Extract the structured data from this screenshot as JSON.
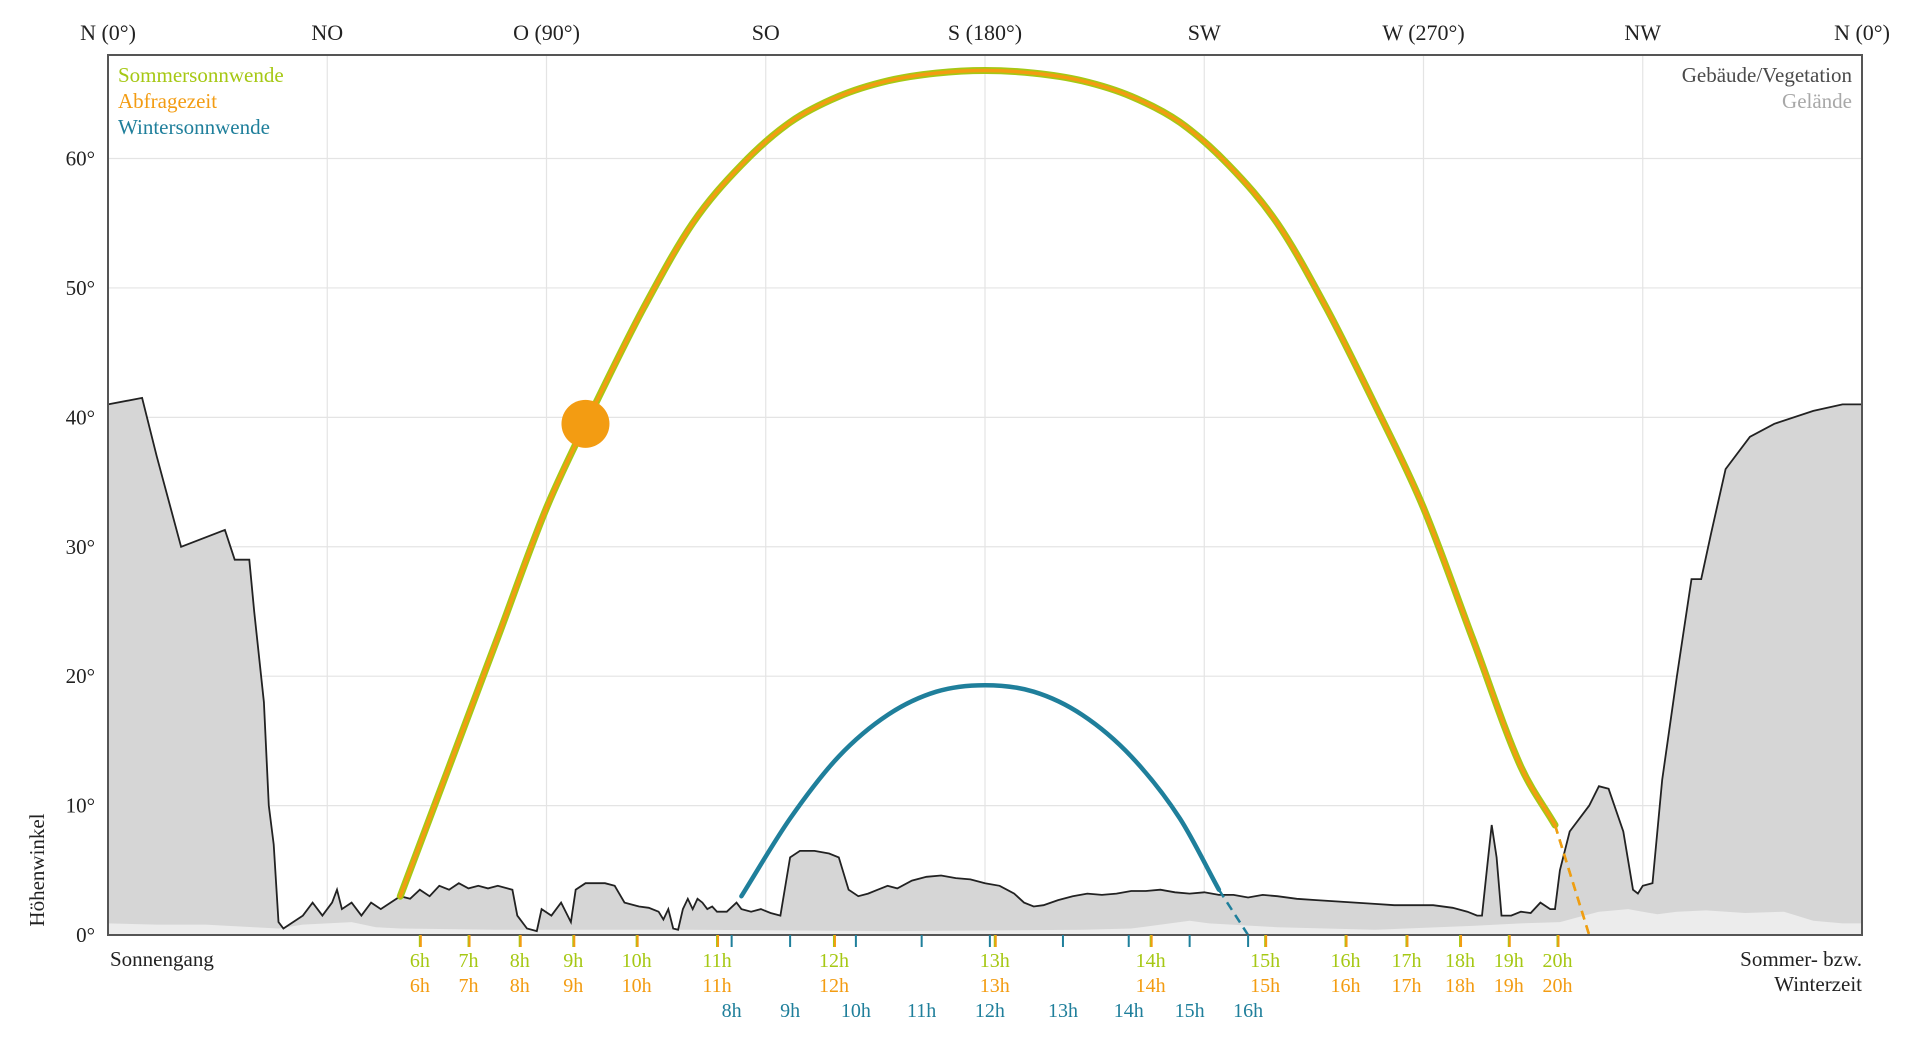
{
  "chart_data": {
    "type": "line",
    "title": "",
    "xlabel": "",
    "ylabel": "Höhenwinkel",
    "xlim": [
      0,
      360
    ],
    "ylim": [
      0,
      68
    ],
    "y_ticks": [
      {
        "value": 0,
        "label": "0°"
      },
      {
        "value": 10,
        "label": "10°"
      },
      {
        "value": 20,
        "label": "20°"
      },
      {
        "value": 30,
        "label": "30°"
      },
      {
        "value": 40,
        "label": "40°"
      },
      {
        "value": 50,
        "label": "50°"
      },
      {
        "value": 60,
        "label": "60°"
      }
    ],
    "x_ticks": [
      {
        "value": 0,
        "label": "N (0°)"
      },
      {
        "value": 45,
        "label": "NO"
      },
      {
        "value": 90,
        "label": "O (90°)"
      },
      {
        "value": 135,
        "label": "SO"
      },
      {
        "value": 180,
        "label": "S (180°)"
      },
      {
        "value": 225,
        "label": "SW"
      },
      {
        "value": 270,
        "label": "W (270°)"
      },
      {
        "value": 315,
        "label": "NW"
      },
      {
        "value": 360,
        "label": "N (0°)"
      }
    ],
    "grid": true,
    "legend": {
      "placement": "top-left",
      "entries": [
        {
          "label": "Sommersonnwende",
          "color": "#a6c814"
        },
        {
          "label": "Abfragezeit",
          "color": "#f39c12"
        },
        {
          "label": "Wintersonnwende",
          "color": "#1f7f9b"
        }
      ]
    },
    "legend_right": {
      "placement": "top-right",
      "entries": [
        {
          "label": "Gebäude/Vegetation",
          "color": "#4a4a4a"
        },
        {
          "label": "Gelände",
          "color": "#a8a8a8"
        }
      ]
    },
    "corner_labels": {
      "bottom_left": "Sonnengang",
      "bottom_right_line1": "Sommer- bzw.",
      "bottom_right_line2": "Winterzeit"
    },
    "series": [
      {
        "name": "Sommersonnwende",
        "color": "#a6c814",
        "points": [
          [
            56,
            0
          ],
          [
            60,
            3
          ],
          [
            70,
            13
          ],
          [
            80,
            23
          ],
          [
            90,
            33
          ],
          [
            100,
            41
          ],
          [
            110,
            48.5
          ],
          [
            120,
            55
          ],
          [
            130,
            59.5
          ],
          [
            140,
            62.8
          ],
          [
            150,
            64.8
          ],
          [
            160,
            66
          ],
          [
            170,
            66.6
          ],
          [
            180,
            66.8
          ],
          [
            190,
            66.6
          ],
          [
            200,
            66
          ],
          [
            210,
            64.8
          ],
          [
            220,
            62.8
          ],
          [
            230,
            59.5
          ],
          [
            240,
            55
          ],
          [
            250,
            48.5
          ],
          [
            260,
            41
          ],
          [
            270,
            33
          ],
          [
            280,
            23
          ],
          [
            290,
            13
          ],
          [
            297,
            8.5
          ],
          [
            304,
            0
          ]
        ],
        "hidden_ranges": [
          [
            56,
            59
          ],
          [
            297,
            304
          ]
        ]
      },
      {
        "name": "Abfragezeit",
        "color": "#f39c12",
        "points": [
          [
            56,
            0
          ],
          [
            60,
            3
          ],
          [
            70,
            13
          ],
          [
            80,
            23
          ],
          [
            90,
            33
          ],
          [
            100,
            41
          ],
          [
            110,
            48.5
          ],
          [
            120,
            55
          ],
          [
            130,
            59.5
          ],
          [
            140,
            62.8
          ],
          [
            150,
            64.8
          ],
          [
            160,
            66
          ],
          [
            170,
            66.6
          ],
          [
            180,
            66.8
          ],
          [
            190,
            66.6
          ],
          [
            200,
            66
          ],
          [
            210,
            64.8
          ],
          [
            220,
            62.8
          ],
          [
            230,
            59.5
          ],
          [
            240,
            55
          ],
          [
            250,
            48.5
          ],
          [
            260,
            41
          ],
          [
            270,
            33
          ],
          [
            280,
            23
          ],
          [
            290,
            13
          ],
          [
            297,
            8.5
          ],
          [
            304,
            0
          ]
        ],
        "hidden_ranges": [
          [
            56,
            59
          ],
          [
            297,
            304
          ]
        ],
        "current_position": {
          "x": 98,
          "y": 39.5
        }
      },
      {
        "name": "Wintersonnwende",
        "color": "#1f7f9b",
        "points": [
          [
            126,
            0
          ],
          [
            130,
            3
          ],
          [
            140,
            9
          ],
          [
            150,
            13.8
          ],
          [
            160,
            17
          ],
          [
            170,
            18.8
          ],
          [
            180,
            19.3
          ],
          [
            190,
            18.8
          ],
          [
            200,
            17
          ],
          [
            210,
            13.8
          ],
          [
            220,
            9
          ],
          [
            228,
            3.5
          ],
          [
            234,
            0
          ]
        ],
        "hidden_ranges": [
          [
            126,
            128
          ],
          [
            228,
            234
          ]
        ]
      }
    ],
    "horizon": {
      "buildings_vegetation": [
        [
          0,
          41
        ],
        [
          7,
          41.5
        ],
        [
          10,
          37
        ],
        [
          15,
          30
        ],
        [
          24,
          31.3
        ],
        [
          26,
          29
        ],
        [
          29,
          29
        ],
        [
          30,
          25
        ],
        [
          32,
          18
        ],
        [
          33,
          10
        ],
        [
          34,
          7
        ],
        [
          35,
          1
        ],
        [
          36,
          0.5
        ],
        [
          40,
          1.5
        ],
        [
          42,
          2.5
        ],
        [
          44,
          1.5
        ],
        [
          46,
          2.5
        ],
        [
          47,
          3.5
        ],
        [
          48,
          2
        ],
        [
          50,
          2.5
        ],
        [
          52,
          1.5
        ],
        [
          54,
          2.5
        ],
        [
          56,
          2
        ],
        [
          58,
          2.5
        ],
        [
          60,
          3
        ],
        [
          62,
          2.8
        ],
        [
          64,
          3.5
        ],
        [
          66,
          3
        ],
        [
          68,
          3.8
        ],
        [
          70,
          3.5
        ],
        [
          72,
          4
        ],
        [
          74,
          3.6
        ],
        [
          76,
          3.8
        ],
        [
          78,
          3.6
        ],
        [
          80,
          3.8
        ],
        [
          83,
          3.5
        ],
        [
          84,
          1.5
        ],
        [
          86,
          0.5
        ],
        [
          88,
          0.3
        ],
        [
          89,
          2
        ],
        [
          91,
          1.5
        ],
        [
          93,
          2.5
        ],
        [
          95,
          1
        ],
        [
          96,
          3.5
        ],
        [
          98,
          4
        ],
        [
          102,
          4
        ],
        [
          104,
          3.8
        ],
        [
          106,
          2.5
        ],
        [
          109,
          2.2
        ],
        [
          111,
          2.1
        ],
        [
          113,
          1.8
        ],
        [
          114,
          1.2
        ],
        [
          115,
          2
        ],
        [
          116,
          0.5
        ],
        [
          117,
          0.4
        ],
        [
          118,
          2
        ],
        [
          119,
          2.8
        ],
        [
          120,
          2
        ],
        [
          121,
          2.8
        ],
        [
          122,
          2.5
        ],
        [
          123,
          2
        ],
        [
          124,
          2.2
        ],
        [
          125,
          1.8
        ],
        [
          127,
          1.8
        ],
        [
          129,
          2.5
        ],
        [
          130,
          2
        ],
        [
          132,
          1.8
        ],
        [
          134,
          2
        ],
        [
          136,
          1.7
        ],
        [
          138,
          1.5
        ],
        [
          140,
          6
        ],
        [
          142,
          6.5
        ],
        [
          145,
          6.5
        ],
        [
          148,
          6.3
        ],
        [
          150,
          6
        ],
        [
          152,
          3.5
        ],
        [
          154,
          3
        ],
        [
          156,
          3.2
        ],
        [
          158,
          3.5
        ],
        [
          160,
          3.8
        ],
        [
          162,
          3.6
        ],
        [
          165,
          4.2
        ],
        [
          168,
          4.5
        ],
        [
          171,
          4.6
        ],
        [
          174,
          4.4
        ],
        [
          177,
          4.3
        ],
        [
          180,
          4
        ],
        [
          183,
          3.8
        ],
        [
          186,
          3.2
        ],
        [
          188,
          2.5
        ],
        [
          190,
          2.2
        ],
        [
          192,
          2.3
        ],
        [
          195,
          2.7
        ],
        [
          198,
          3
        ],
        [
          201,
          3.2
        ],
        [
          204,
          3.1
        ],
        [
          207,
          3.2
        ],
        [
          210,
          3.4
        ],
        [
          213,
          3.4
        ],
        [
          216,
          3.5
        ],
        [
          219,
          3.3
        ],
        [
          222,
          3.2
        ],
        [
          225,
          3.3
        ],
        [
          228,
          3.1
        ],
        [
          231,
          3.1
        ],
        [
          234,
          2.9
        ],
        [
          237,
          3.1
        ],
        [
          240,
          3
        ],
        [
          244,
          2.8
        ],
        [
          248,
          2.7
        ],
        [
          252,
          2.6
        ],
        [
          256,
          2.5
        ],
        [
          260,
          2.4
        ],
        [
          264,
          2.3
        ],
        [
          268,
          2.3
        ],
        [
          272,
          2.3
        ],
        [
          276,
          2.1
        ],
        [
          279,
          1.8
        ],
        [
          281,
          1.5
        ],
        [
          282,
          1.5
        ],
        [
          283,
          5
        ],
        [
          284,
          8.5
        ],
        [
          285,
          6
        ],
        [
          286,
          1.5
        ],
        [
          288,
          1.5
        ],
        [
          290,
          1.8
        ],
        [
          292,
          1.7
        ],
        [
          294,
          2.5
        ],
        [
          296,
          2
        ],
        [
          297,
          2
        ],
        [
          298,
          5
        ],
        [
          300,
          8
        ],
        [
          304,
          10
        ],
        [
          306,
          11.5
        ],
        [
          308,
          11.3
        ],
        [
          311,
          8
        ],
        [
          313,
          3.5
        ],
        [
          314,
          3.2
        ],
        [
          315,
          3.8
        ],
        [
          317,
          4
        ],
        [
          319,
          12
        ],
        [
          322,
          20
        ],
        [
          325,
          27.5
        ],
        [
          327,
          27.5
        ],
        [
          329,
          31
        ],
        [
          332,
          36
        ],
        [
          337,
          38.5
        ],
        [
          342,
          39.5
        ],
        [
          350,
          40.5
        ],
        [
          356,
          41
        ],
        [
          360,
          41
        ]
      ],
      "terrain": [
        [
          0,
          0.9
        ],
        [
          10,
          0.8
        ],
        [
          20,
          0.8
        ],
        [
          30,
          0.6
        ],
        [
          35,
          0.5
        ],
        [
          40,
          0.8
        ],
        [
          50,
          1
        ],
        [
          55,
          0.6
        ],
        [
          60,
          0.5
        ],
        [
          80,
          0.4
        ],
        [
          100,
          0.4
        ],
        [
          120,
          0.4
        ],
        [
          160,
          0.3
        ],
        [
          200,
          0.4
        ],
        [
          210,
          0.5
        ],
        [
          218,
          0.9
        ],
        [
          222,
          1.1
        ],
        [
          226,
          0.9
        ],
        [
          240,
          0.6
        ],
        [
          260,
          0.4
        ],
        [
          280,
          0.7
        ],
        [
          290,
          0.9
        ],
        [
          298,
          1
        ],
        [
          302,
          1.4
        ],
        [
          306,
          1.8
        ],
        [
          312,
          2
        ],
        [
          318,
          1.6
        ],
        [
          322,
          1.8
        ],
        [
          328,
          1.9
        ],
        [
          336,
          1.7
        ],
        [
          344,
          1.8
        ],
        [
          350,
          1.1
        ],
        [
          356,
          0.9
        ],
        [
          360,
          0.9
        ]
      ]
    },
    "time_ticks": {
      "summer": [
        {
          "x": 64,
          "label": "6h"
        },
        {
          "x": 74,
          "label": "7h"
        },
        {
          "x": 84.5,
          "label": "8h"
        },
        {
          "x": 95.5,
          "label": "9h"
        },
        {
          "x": 108.5,
          "label": "10h"
        },
        {
          "x": 125,
          "label": "11h"
        },
        {
          "x": 149,
          "label": "12h"
        },
        {
          "x": 182,
          "label": "13h"
        },
        {
          "x": 214,
          "label": "14h"
        },
        {
          "x": 237.5,
          "label": "15h"
        },
        {
          "x": 254,
          "label": "16h"
        },
        {
          "x": 266.5,
          "label": "17h"
        },
        {
          "x": 277.5,
          "label": "18h"
        },
        {
          "x": 287.5,
          "label": "19h"
        },
        {
          "x": 297.5,
          "label": "20h"
        }
      ],
      "query": [
        {
          "x": 64,
          "label": "6h"
        },
        {
          "x": 74,
          "label": "7h"
        },
        {
          "x": 84.5,
          "label": "8h"
        },
        {
          "x": 95.5,
          "label": "9h"
        },
        {
          "x": 108.5,
          "label": "10h"
        },
        {
          "x": 125,
          "label": "11h"
        },
        {
          "x": 149,
          "label": "12h"
        },
        {
          "x": 182,
          "label": "13h"
        },
        {
          "x": 214,
          "label": "14h"
        },
        {
          "x": 237.5,
          "label": "15h"
        },
        {
          "x": 254,
          "label": "16h"
        },
        {
          "x": 266.5,
          "label": "17h"
        },
        {
          "x": 277.5,
          "label": "18h"
        },
        {
          "x": 287.5,
          "label": "19h"
        },
        {
          "x": 297.5,
          "label": "20h"
        }
      ],
      "winter": [
        {
          "x": 128,
          "label": "8h"
        },
        {
          "x": 140,
          "label": "9h"
        },
        {
          "x": 153.5,
          "label": "10h"
        },
        {
          "x": 167,
          "label": "11h"
        },
        {
          "x": 181,
          "label": "12h"
        },
        {
          "x": 196,
          "label": "13h"
        },
        {
          "x": 209.5,
          "label": "14h"
        },
        {
          "x": 222,
          "label": "15h"
        },
        {
          "x": 234,
          "label": "16h"
        }
      ]
    }
  }
}
